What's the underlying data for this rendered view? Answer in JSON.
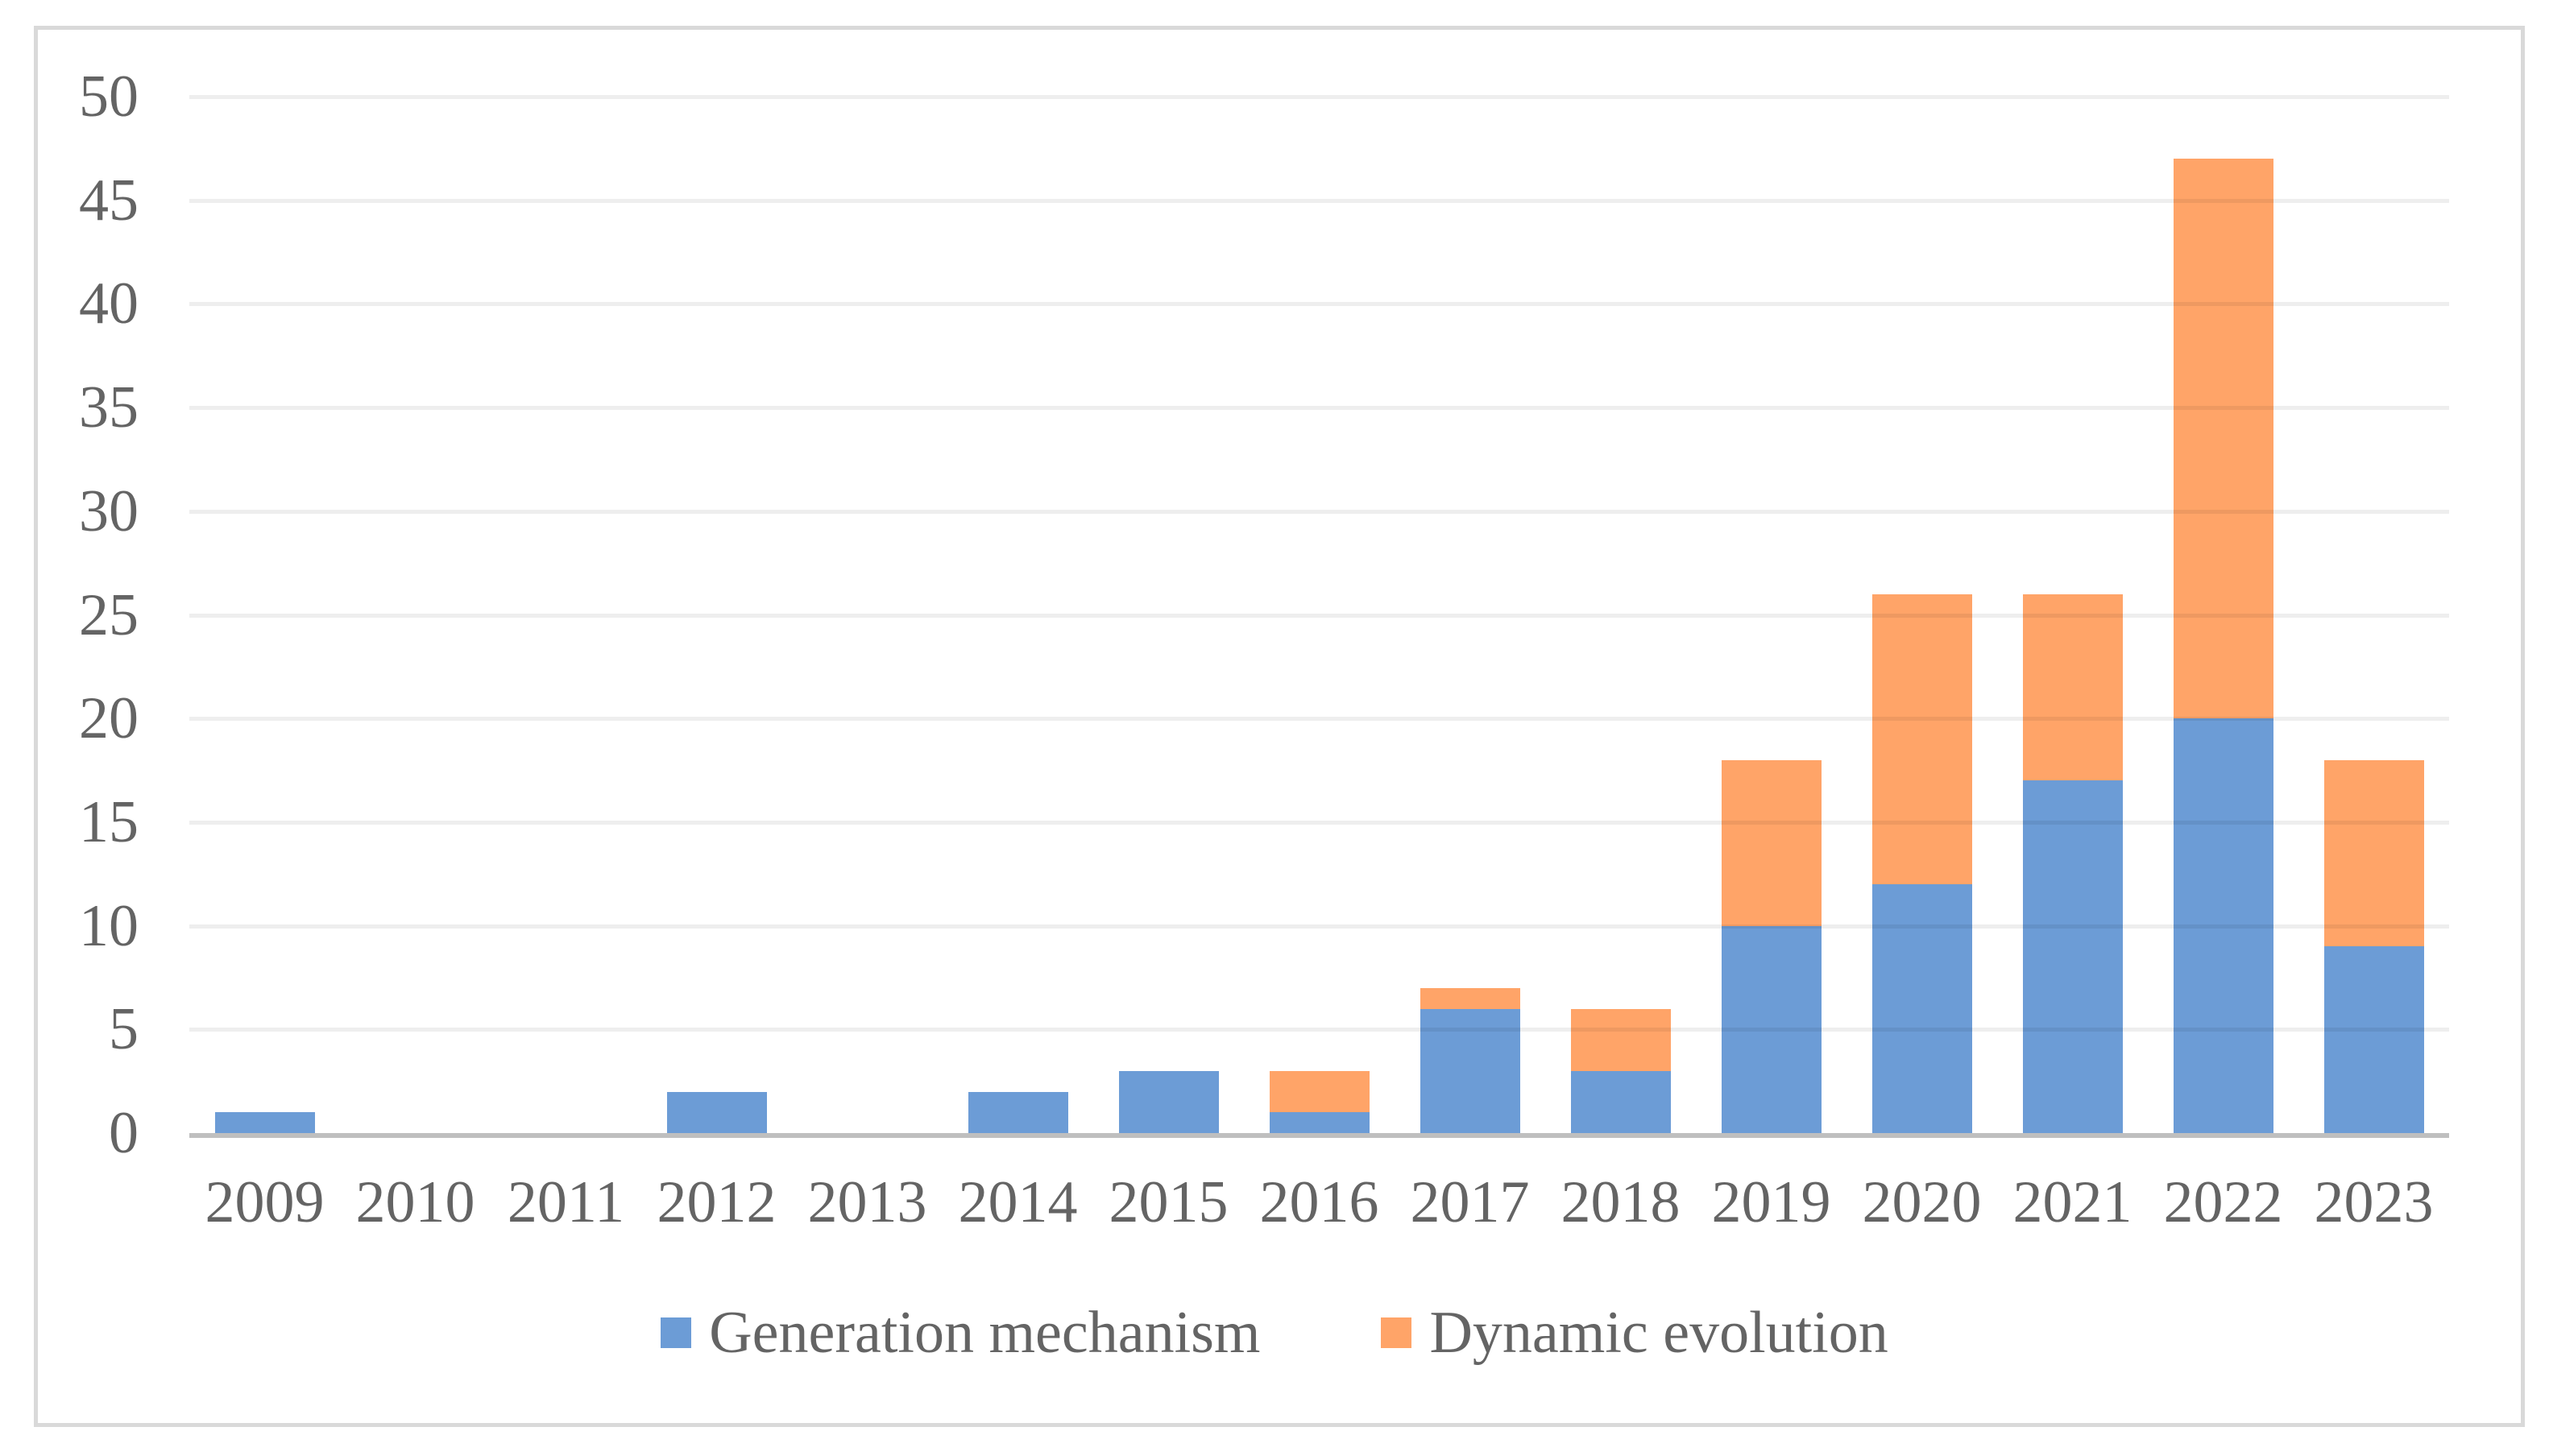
{
  "chart_data": {
    "type": "bar",
    "stacked": true,
    "title": "",
    "categories": [
      "2009",
      "2010",
      "2011",
      "2012",
      "2013",
      "2014",
      "2015",
      "2016",
      "2017",
      "2018",
      "2019",
      "2020",
      "2021",
      "2022",
      "2023"
    ],
    "series": [
      {
        "name": "Generation mechanism",
        "color": "#6C9CD6",
        "values": [
          1,
          0,
          0,
          2,
          0,
          2,
          3,
          1,
          6,
          3,
          10,
          12,
          17,
          20,
          9
        ]
      },
      {
        "name": "Dynamic evolution",
        "color": "#FFA468",
        "values": [
          0,
          0,
          0,
          0,
          0,
          0,
          0,
          2,
          1,
          3,
          8,
          14,
          9,
          27,
          9
        ]
      }
    ],
    "totals": [
      1,
      0,
      0,
      2,
      0,
      2,
      3,
      3,
      7,
      6,
      18,
      26,
      26,
      47,
      18
    ],
    "xlabel": "",
    "ylabel": "",
    "ylim": [
      0,
      50
    ],
    "ytick_step": 5,
    "ytick_labels": [
      "0",
      "5",
      "10",
      "15",
      "20",
      "25",
      "30",
      "35",
      "40",
      "45",
      "50"
    ],
    "grid": "horizontal",
    "legend_position": "bottom",
    "colors": {
      "axis_line": "#BFBFBF",
      "gridline": "#EFEFEF",
      "frame_border": "#D9D9D9",
      "text": "#646464",
      "background": "#FFFFFF"
    }
  }
}
